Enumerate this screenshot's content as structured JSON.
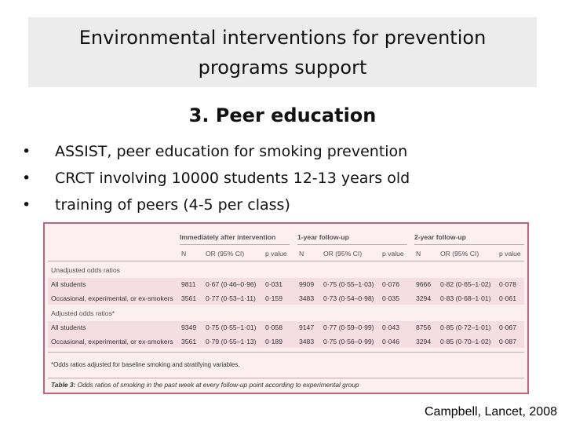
{
  "title": {
    "line1": "Environmental interventions for prevention",
    "line2": "programs support"
  },
  "subtitle": "3. Peer education",
  "bullets": [
    "ASSIST, peer education for smoking prevention",
    "CRCT involving 10000 students 12-13 years old",
    "training of peers (4-5 per class)"
  ],
  "bullet_glyph": "•",
  "table": {
    "group_headers": [
      "Immediately after intervention",
      "1-year follow-up",
      "2-year follow-up"
    ],
    "sub_headers": [
      "N",
      "OR (95% CI)",
      "p value",
      "N",
      "OR (95% CI)",
      "p value",
      "N",
      "OR (95% CI)",
      "p value"
    ],
    "sections": [
      {
        "label": "Unadjusted odds ratios",
        "rows": [
          {
            "name": "All students",
            "cells": [
              "9811",
              "0·67 (0·46–0·96)",
              "0·031",
              "9909",
              "0·75 (0·55–1·03)",
              "0·076",
              "9666",
              "0·82 (0·65–1·02)",
              "0·078"
            ]
          },
          {
            "name": "Occasional, experimental, or ex-smokers",
            "cells": [
              "3561",
              "0·77 (0·53–1·11)",
              "0·159",
              "3483",
              "0·73 (0·54–0·98)",
              "0·035",
              "3294",
              "0·83 (0·68–1·01)",
              "0·061"
            ]
          }
        ]
      },
      {
        "label": "Adjusted odds ratios*",
        "rows": [
          {
            "name": "All students",
            "cells": [
              "9349",
              "0·75 (0·55–1·01)",
              "0·058",
              "9147",
              "0·77 (0·59–0·99)",
              "0·043",
              "8756",
              "0·85 (0·72–1·01)",
              "0·067"
            ]
          },
          {
            "name": "Occasional, experimental, or ex-smokers",
            "cells": [
              "3561",
              "0·79 (0·55–1·13)",
              "0·189",
              "3483",
              "0·75 (0·56–0·99)",
              "0·046",
              "3294",
              "0·85 (0·70–1·02)",
              "0·087"
            ]
          }
        ]
      }
    ],
    "footnote": "*Odds ratios adjusted for baseline smoking and stratifying variables.",
    "caption": "Table 3: Odds ratios of smoking in the past week at every follow-up point according to experimental group"
  },
  "citation": "Campbell, Lancet, 2008",
  "colors": {
    "title_bg": "#ececec",
    "table_bg": "#fbefef",
    "table_border": "#c1637e",
    "row_shade": "#f5dde4"
  }
}
